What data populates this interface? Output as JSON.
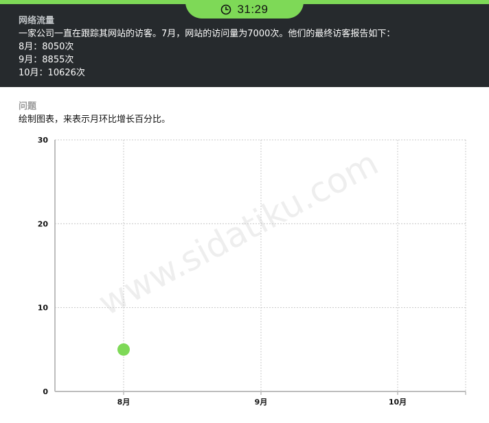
{
  "timer": {
    "icon": "clock-icon",
    "value": "31:29"
  },
  "header": {
    "title": "网络流量",
    "lines": [
      "一家公司一直在跟踪其网站的访客。7月，网站的访问量为7000次。他们的最终访客报告如下：",
      "8月：8050次",
      "9月：8855次",
      "10月：10626次"
    ]
  },
  "question": {
    "label": "问题",
    "text": "绘制图表，来表示月环比增长百分比。"
  },
  "watermark": "www.sidatiku.com",
  "colors": {
    "accent": "#7ed957",
    "header_bg": "#262a2d",
    "point": "#7ed957",
    "grid": "#c8c8c8"
  },
  "chart_data": {
    "type": "scatter",
    "categories": [
      "8月",
      "9月",
      "10月"
    ],
    "y_ticks": [
      "0",
      "10",
      "20",
      "30"
    ],
    "ylim": [
      0,
      30
    ],
    "grid": true,
    "points": [
      {
        "x": "8月",
        "y": 5
      }
    ]
  }
}
